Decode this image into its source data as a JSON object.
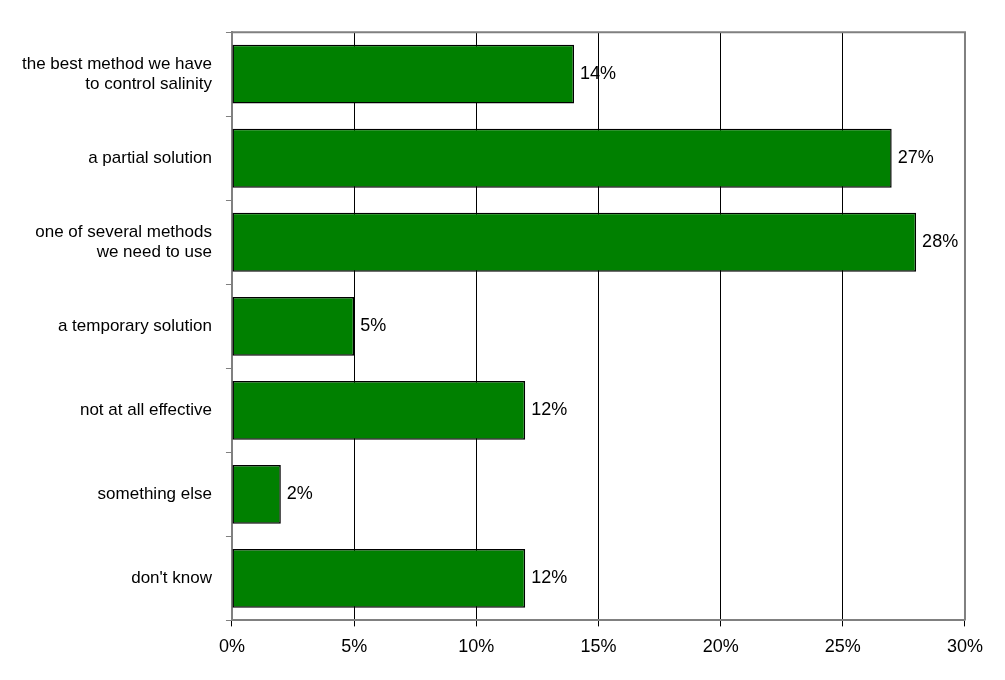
{
  "chart_data": {
    "type": "bar",
    "orientation": "horizontal",
    "categories": [
      "the best method we have to control salinity",
      "a partial solution",
      "one of several methods we need to use",
      "a temporary solution",
      "not at all effective",
      "something else",
      "don't know"
    ],
    "values": [
      14,
      27,
      28,
      5,
      12,
      2,
      12
    ],
    "value_labels": [
      "14%",
      "27%",
      "28%",
      "5%",
      "12%",
      "2%",
      "12%"
    ],
    "color": "#008000",
    "xlim": [
      0,
      30
    ],
    "xticks": [
      {
        "value": 0,
        "label": "0%"
      },
      {
        "value": 5,
        "label": "5%"
      },
      {
        "value": 10,
        "label": "10%"
      },
      {
        "value": 15,
        "label": "15%"
      },
      {
        "value": 20,
        "label": "20%"
      },
      {
        "value": 25,
        "label": "25%"
      },
      {
        "value": 30,
        "label": "30%"
      }
    ],
    "grid": "x"
  }
}
